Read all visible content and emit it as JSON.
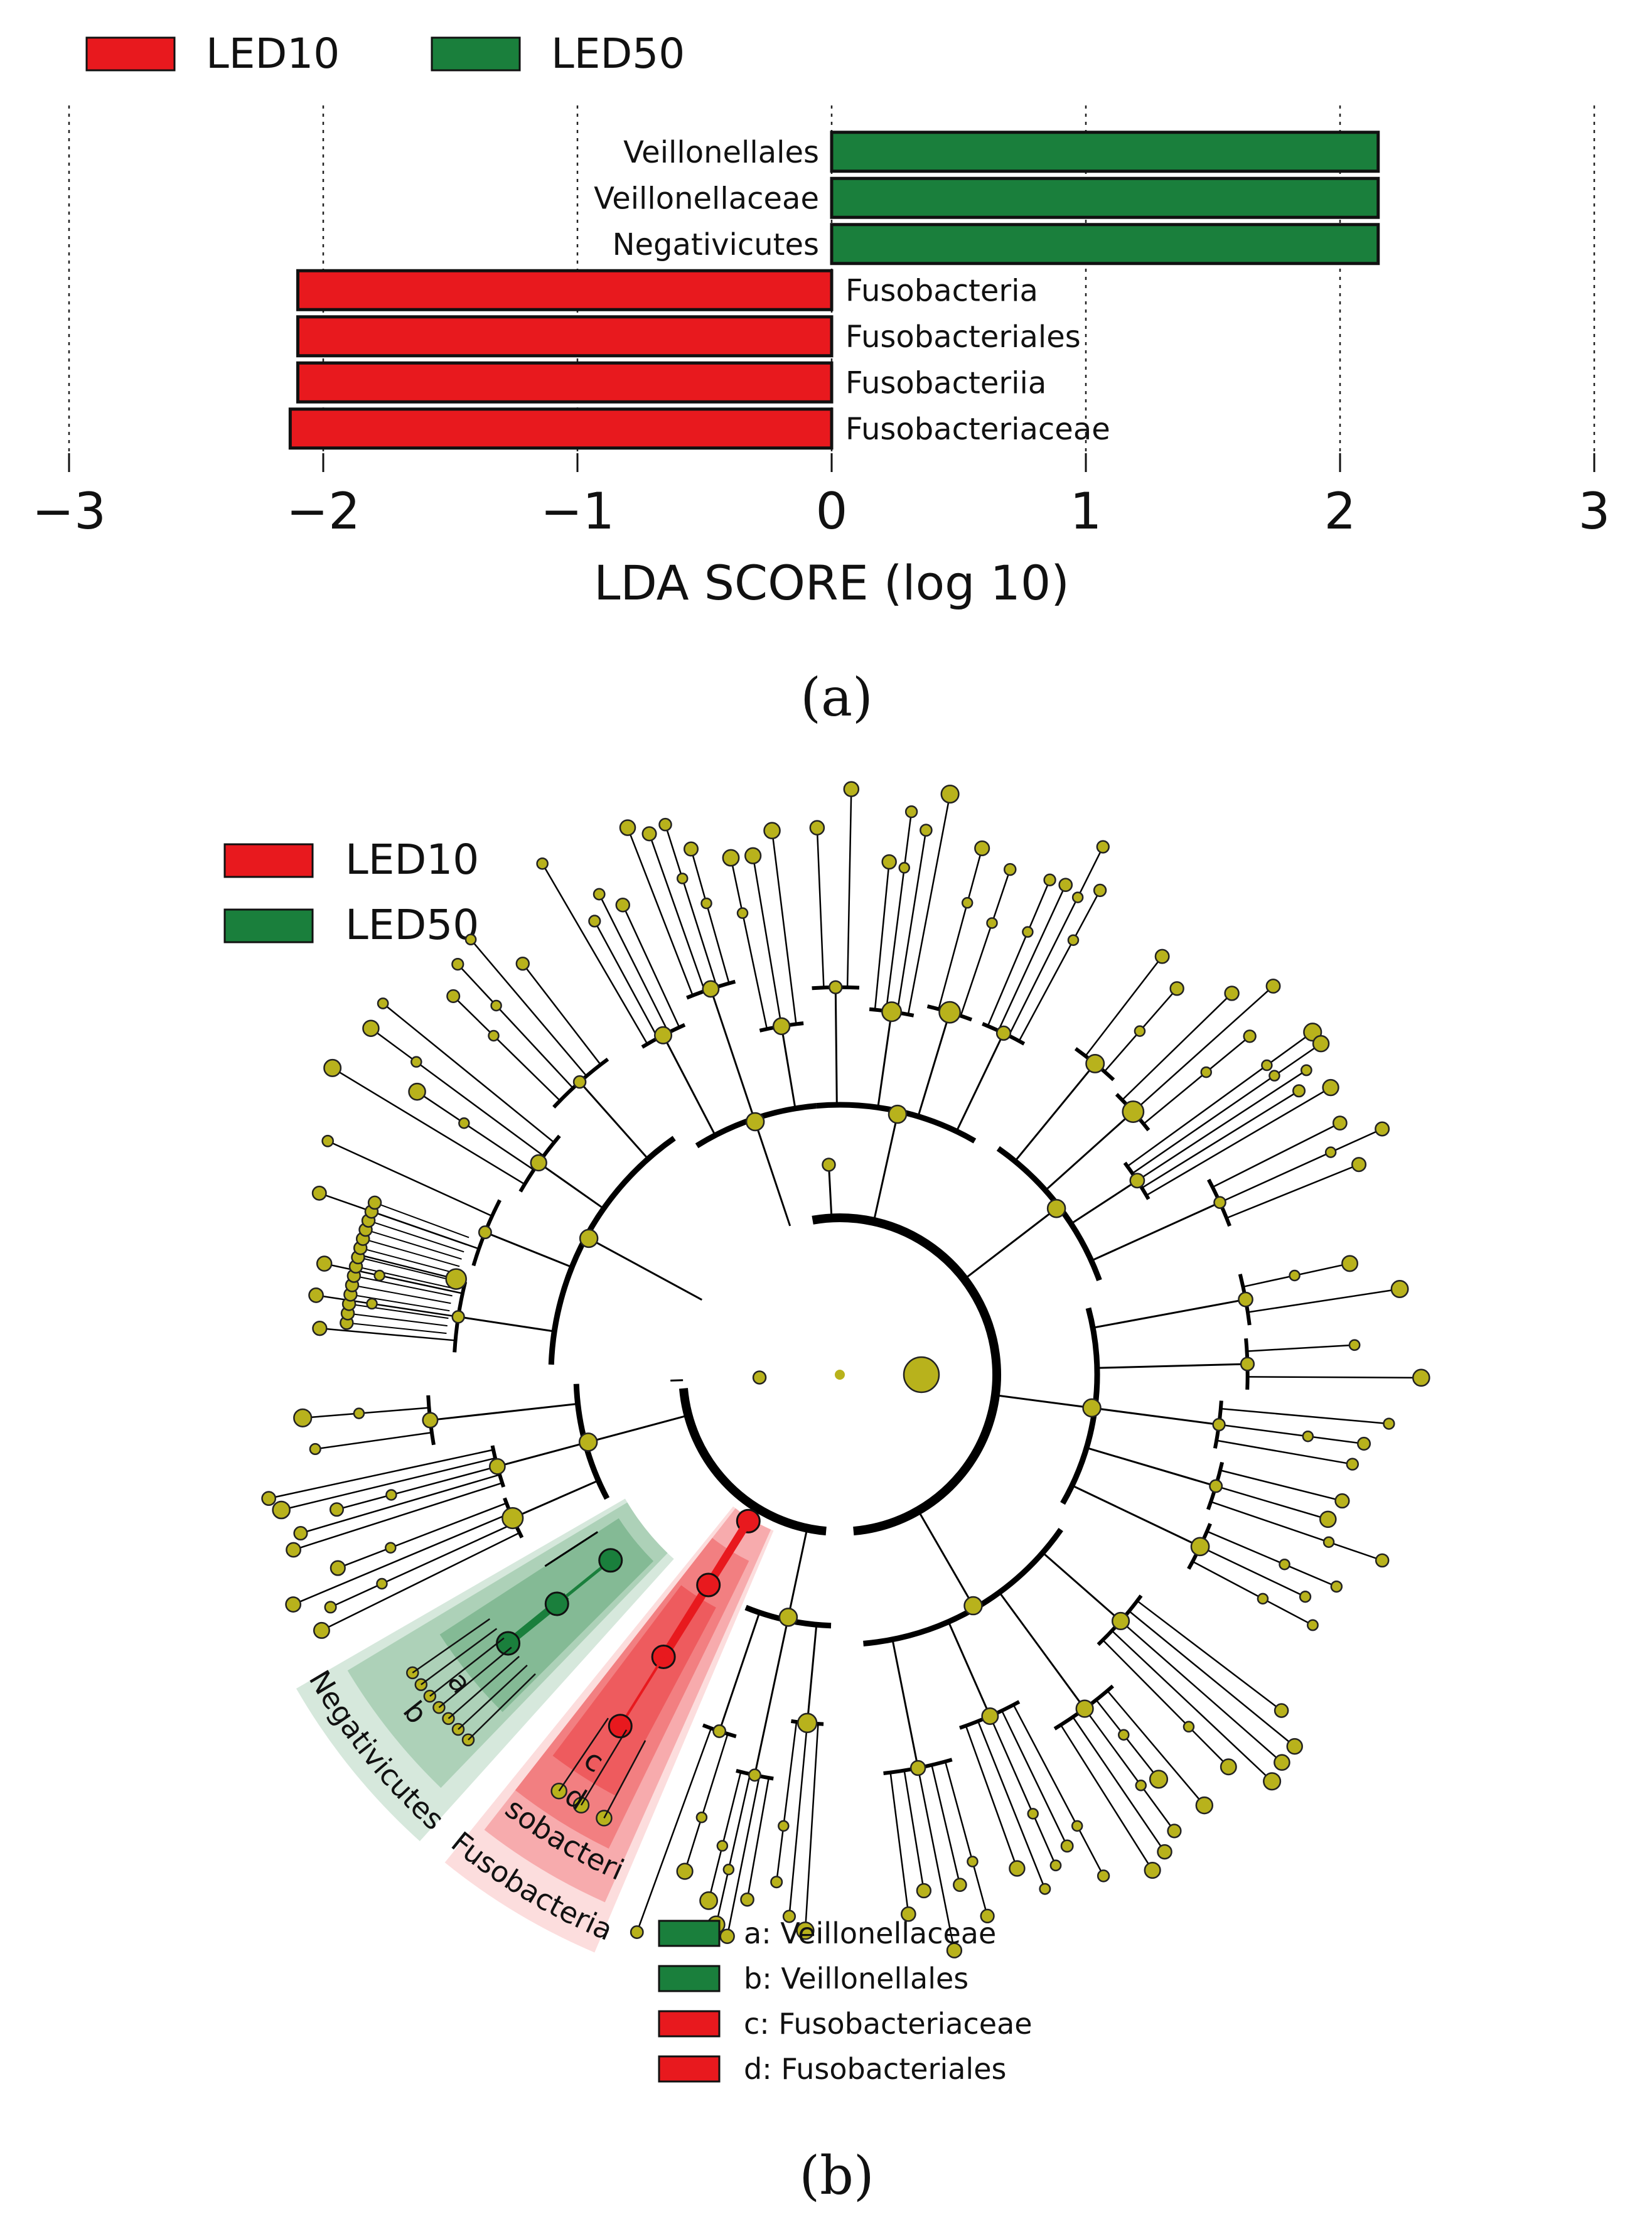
{
  "chart_data": [
    {
      "type": "bar",
      "orientation": "horizontal",
      "panel_label": "(a)",
      "xlabel": "LDA SCORE (log 10)",
      "xlim": [
        -3,
        3
      ],
      "xticks": [
        -3,
        -2,
        -1,
        0,
        1,
        2,
        3
      ],
      "xtick_labels": [
        "−3",
        "−2",
        "−1",
        "0",
        "1",
        "2",
        "3"
      ],
      "grid": "vertical dotted",
      "legend": {
        "placement": "top-left",
        "entries": [
          {
            "name": "LED10",
            "color": "#e8191e"
          },
          {
            "name": "LED50",
            "color": "#1a7f3c"
          }
        ]
      },
      "categories": [
        "Veillonellales",
        "Veillonellaceae",
        "Negativicutes",
        "Fusobacteria",
        "Fusobacteriales",
        "Fusobacteriia",
        "Fusobacteriaceae"
      ],
      "values": [
        2.15,
        2.15,
        2.15,
        -2.1,
        -2.1,
        -2.1,
        -2.13
      ],
      "groups": [
        "LED50",
        "LED50",
        "LED50",
        "LED10",
        "LED10",
        "LED10",
        "LED10"
      ]
    },
    {
      "type": "cladogram",
      "panel_label": "(b)",
      "node_color": "#b8b21c",
      "legend": {
        "placement": "top-left",
        "entries": [
          {
            "name": "LED10",
            "color": "#e8191e"
          },
          {
            "name": "LED50",
            "color": "#1a7f3c"
          }
        ]
      },
      "highlighted_clades": [
        {
          "label": "Negativicutes",
          "group": "LED50"
        },
        {
          "label": "b",
          "group": "LED50"
        },
        {
          "label": "a",
          "group": "LED50"
        },
        {
          "label": "Fusobacteria",
          "group": "LED10"
        },
        {
          "label": "Fusobacteriia",
          "group": "LED10"
        },
        {
          "label": "d",
          "group": "LED10"
        },
        {
          "label": "c",
          "group": "LED10"
        }
      ],
      "key": [
        {
          "text": "a: Veillonellaceae",
          "group": "LED50"
        },
        {
          "text": "b: Veillonellales",
          "group": "LED50"
        },
        {
          "text": "c: Fusobacteriaceae",
          "group": "LED10"
        },
        {
          "text": "d: Fusobacteriales",
          "group": "LED10"
        }
      ]
    }
  ]
}
